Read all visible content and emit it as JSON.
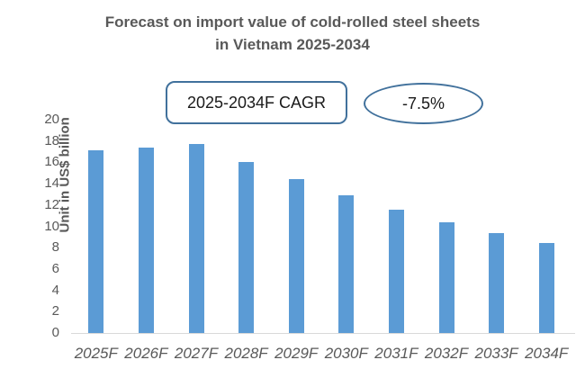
{
  "title": {
    "line1": "Forecast on import value of cold-rolled steel sheets",
    "line2": "in Vietnam 2025-2034"
  },
  "annotations": {
    "cagr_label": "2025-2034F CAGR",
    "cagr_value": "-7.5%"
  },
  "chart_data": {
    "type": "bar",
    "title": "Forecast on import value of cold-rolled steel sheets in Vietnam 2025-2034",
    "categories": [
      "2025F",
      "2026F",
      "2027F",
      "2028F",
      "2029F",
      "2030F",
      "2031F",
      "2032F",
      "2033F",
      "2034F"
    ],
    "values": [
      17.1,
      17.4,
      17.7,
      16.0,
      14.4,
      12.9,
      11.6,
      10.4,
      9.4,
      8.4
    ],
    "xlabel": "",
    "ylabel": "Unit in US$ billion",
    "ylim": [
      0,
      20
    ],
    "ytick_step": 2,
    "grid": false,
    "legend": "none",
    "bar_color": "#5B9BD5"
  },
  "colors": {
    "bar": "#5B9BD5",
    "shape_border": "#41719C",
    "text_gray": "#595959",
    "axis_line": "#D9D9D9",
    "annotation_text": "#1a1a1a"
  }
}
